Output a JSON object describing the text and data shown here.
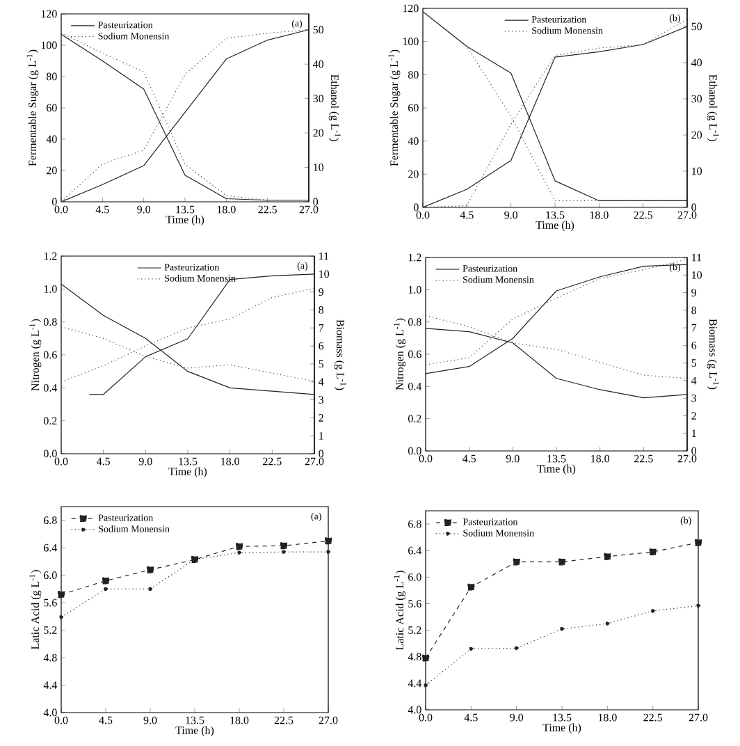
{
  "chart_data": [
    {
      "type": "line",
      "xlabel": "Time (h)",
      "ylabel": "Fermentable Sugar (g L$^{-1}$)",
      "y2label": "Ethanol (g L$^{-1}$)",
      "annotations": [
        "(a)"
      ],
      "x": [
        0,
        4.5,
        9,
        13.5,
        18,
        22.5,
        27
      ],
      "series": [
        {
          "name": "Pasteurization",
          "color": "#222222",
          "line_style": "solid",
          "values": [
            107,
            90,
            72,
            17,
            2,
            1,
            1
          ]
        },
        {
          "name": "Sodium Monensin",
          "color": "#444444",
          "line_style": "dotted",
          "values": [
            108,
            95,
            83,
            24,
            4,
            1,
            1
          ]
        },
        {
          "color": "#222222",
          "line_style": "solid",
          "axis": "y2",
          "values": [
            0,
            5,
            10.5,
            26,
            41.5,
            47,
            50
          ]
        },
        {
          "color": "#444444",
          "line_style": "dotted",
          "axis": "y2",
          "values": [
            0,
            11,
            15,
            37,
            47.5,
            49,
            50
          ]
        }
      ],
      "xlim": [
        0,
        27
      ],
      "ylim": [
        0,
        120
      ],
      "y2lim": [
        0,
        54.6
      ],
      "xticks": [
        {
          "value": 0,
          "label": "0.0"
        },
        4.5,
        {
          "value": 9,
          "label": "9.0"
        },
        13.5,
        {
          "value": 18,
          "label": "18.0"
        },
        22.5,
        {
          "value": 27,
          "label": "27.0"
        }
      ],
      "yticks": [
        0,
        20,
        40,
        60,
        80,
        100,
        120
      ],
      "y2ticks": [
        0,
        10,
        20,
        30,
        40,
        50
      ],
      "legend": "top left"
    },
    {
      "type": "line",
      "xlabel": "Time (h)",
      "ylabel": "Fermentable Sugar (g L$^{-1}$)",
      "y2label": "Ethanol (g L$^{-1}$)",
      "annotations": [
        "(b)"
      ],
      "x": [
        0,
        4.5,
        9,
        13.5,
        18,
        22.5,
        27
      ],
      "series": [
        {
          "name": "Pasteurization",
          "color": "#222222",
          "line_style": "solid",
          "values": [
            118,
            97,
            81,
            16,
            4,
            4,
            4
          ]
        },
        {
          "name": "Sodium Monensin",
          "color": "#444444",
          "line_style": "dotted",
          "values": [
            118,
            97,
            55,
            4,
            4,
            4,
            4
          ]
        },
        {
          "color": "#222222",
          "line_style": "solid",
          "axis": "y2",
          "values": [
            0,
            5,
            13,
            41.5,
            43,
            45,
            50
          ]
        },
        {
          "color": "#444444",
          "line_style": "dotted",
          "axis": "y2",
          "values": [
            0,
            0.5,
            23,
            42,
            44,
            45,
            52
          ]
        }
      ],
      "xlim": [
        0,
        27
      ],
      "ylim": [
        0,
        120
      ],
      "y2lim": [
        0,
        55
      ],
      "xticks": [
        {
          "value": 0,
          "label": "0.0"
        },
        4.5,
        {
          "value": 9,
          "label": "9.0"
        },
        13.5,
        {
          "value": 18,
          "label": "18.0"
        },
        22.5,
        {
          "value": 27,
          "label": "27.0"
        }
      ],
      "yticks": [
        0,
        20,
        40,
        60,
        80,
        100,
        120
      ],
      "y2ticks": [
        0,
        10,
        20,
        30,
        40,
        50
      ],
      "legend": "top"
    },
    {
      "type": "line",
      "xlabel": "Time (h)",
      "ylabel": "Nitrogen (g L$^{-1}$)",
      "y2label": "Biomass (g L$^{-1}$)",
      "annotations": [
        "(a)"
      ],
      "x": [
        0,
        4.5,
        9,
        13.5,
        18,
        22.5,
        27
      ],
      "series": [
        {
          "name": "Pasteurization",
          "color": "#222222",
          "line_style": "solid",
          "values": [
            1.03,
            0.84,
            0.7,
            0.5,
            0.4,
            0.38,
            0.36
          ]
        },
        {
          "name": "Sodium Monensin",
          "color": "#444444",
          "line_style": "dotted",
          "values": [
            0.77,
            0.7,
            0.59,
            0.52,
            0.54,
            0.49,
            0.44
          ]
        },
        {
          "color": "#222222",
          "line_style": "solid",
          "axis": "y2",
          "x": [
            3,
            4.5,
            9,
            13.5,
            18,
            22.5,
            27
          ],
          "values": [
            3.3,
            3.3,
            5.4,
            6.4,
            9.7,
            9.9,
            10
          ]
        },
        {
          "color": "#444444",
          "line_style": "dotted",
          "axis": "y2",
          "values": [
            4,
            4.9,
            6,
            7,
            7.5,
            8.7,
            9.2
          ]
        }
      ],
      "xlim": [
        0,
        27
      ],
      "ylim": [
        0,
        1.2
      ],
      "y2lim": [
        0,
        11
      ],
      "xticks": [
        {
          "value": 0,
          "label": "0.0"
        },
        4.5,
        {
          "value": 9,
          "label": "9.0"
        },
        13.5,
        {
          "value": 18,
          "label": "18.0"
        },
        22.5,
        {
          "value": 27,
          "label": "27.0"
        }
      ],
      "yticks": [
        {
          "value": 0,
          "label": "0.0"
        },
        0.2,
        0.4,
        0.6,
        0.8,
        {
          "value": 1,
          "label": "1.0"
        },
        1.2
      ],
      "y2ticks": [
        0,
        1,
        2,
        3,
        4,
        5,
        6,
        7,
        8,
        9,
        10,
        11
      ],
      "legend": "top"
    },
    {
      "type": "line",
      "xlabel": "Time (h)",
      "ylabel": "Nitrogen (g L$^{-1}$)",
      "y2label": "Biomass (g L$^{-1}$)",
      "annotations": [
        "(b)"
      ],
      "x": [
        0,
        4.5,
        9,
        13.5,
        18,
        22.5,
        27
      ],
      "series": [
        {
          "name": "Pasteurization",
          "color": "#222222",
          "line_style": "solid",
          "values": [
            0.76,
            0.74,
            0.67,
            0.45,
            0.38,
            0.33,
            0.35
          ]
        },
        {
          "name": "Sodium Monensin",
          "color": "#444444",
          "line_style": "dotted",
          "values": [
            0.84,
            0.77,
            0.67,
            0.63,
            0.55,
            0.47,
            0.45
          ]
        },
        {
          "color": "#222222",
          "line_style": "solid",
          "axis": "y2",
          "values": [
            4.4,
            4.8,
            6.4,
            9.1,
            9.9,
            10.5,
            10.6
          ]
        },
        {
          "color": "#444444",
          "line_style": "dotted",
          "axis": "y2",
          "values": [
            4.9,
            5.3,
            7.5,
            8.7,
            9.8,
            10.3,
            10.9
          ]
        }
      ],
      "xlim": [
        0,
        27
      ],
      "ylim": [
        0,
        1.2
      ],
      "y2lim": [
        0,
        11
      ],
      "xticks": [
        {
          "value": 0,
          "label": "0.0"
        },
        4.5,
        {
          "value": 9,
          "label": "9.0"
        },
        13.5,
        {
          "value": 18,
          "label": "18.0"
        },
        22.5,
        {
          "value": 27,
          "label": "27.0"
        }
      ],
      "yticks": [
        {
          "value": 0,
          "label": "0.0"
        },
        0.2,
        0.4,
        0.6,
        0.8,
        {
          "value": 1,
          "label": "1.0"
        },
        1.2
      ],
      "y2ticks": [
        0,
        1,
        2,
        3,
        4,
        5,
        6,
        7,
        8,
        9,
        10,
        11
      ],
      "legend": "top left"
    },
    {
      "type": "line",
      "xlabel": "Time (h)",
      "ylabel": "Latic Acid (g L$^{-1}$)",
      "annotations": [
        "(a)"
      ],
      "x": [
        0,
        4.5,
        9,
        13.5,
        18,
        22.5,
        27
      ],
      "series": [
        {
          "name": "Pasteurization",
          "color": "#222222",
          "line_style": "dashed",
          "marker": "square",
          "values": [
            5.72,
            5.92,
            6.08,
            6.23,
            6.42,
            6.43,
            6.5
          ]
        },
        {
          "name": "Sodium Monensin",
          "color": "#222222",
          "line_style": "dotted",
          "marker": "circle",
          "values": [
            5.39,
            5.8,
            5.8,
            6.23,
            6.33,
            6.34,
            6.34
          ]
        }
      ],
      "xlim": [
        0,
        27
      ],
      "ylim": [
        4,
        7
      ],
      "xticks": [
        {
          "value": 0,
          "label": "0.0"
        },
        4.5,
        {
          "value": 9,
          "label": "9.0"
        },
        13.5,
        {
          "value": 18,
          "label": "18.0"
        },
        22.5,
        {
          "value": 27,
          "label": "27.0"
        }
      ],
      "yticks": [
        {
          "value": 4,
          "label": "4.0"
        },
        4.4,
        4.8,
        5.2,
        5.6,
        {
          "value": 6,
          "label": "6.0"
        },
        6.4,
        6.8
      ],
      "legend": "top left"
    },
    {
      "type": "line",
      "xlabel": "Time (h)",
      "ylabel": "Latic Acid (g L$^{-1}$)",
      "annotations": [
        "(b)"
      ],
      "x": [
        0,
        4.5,
        9,
        13.5,
        18,
        22.5,
        27
      ],
      "series": [
        {
          "name": "Pasteurization",
          "color": "#222222",
          "line_style": "dashed",
          "marker": "square",
          "values": [
            4.78,
            5.85,
            6.23,
            6.23,
            6.31,
            6.38,
            6.52
          ]
        },
        {
          "name": "Sodium Monensin",
          "color": "#222222",
          "line_style": "dotted",
          "marker": "circle",
          "values": [
            4.37,
            4.92,
            4.93,
            5.22,
            5.3,
            5.49,
            5.57
          ]
        }
      ],
      "xlim": [
        0,
        27
      ],
      "ylim": [
        4,
        7
      ],
      "xticks": [
        {
          "value": 0,
          "label": "0.0"
        },
        4.5,
        {
          "value": 9,
          "label": "9.0"
        },
        13.5,
        {
          "value": 18,
          "label": "18.0"
        },
        22.5,
        {
          "value": 27,
          "label": "27.0"
        }
      ],
      "yticks": [
        {
          "value": 4,
          "label": "4.0"
        },
        4.4,
        4.8,
        5.2,
        5.6,
        {
          "value": 6,
          "label": "6.0"
        },
        6.4,
        6.8
      ],
      "legend": "top left"
    }
  ]
}
